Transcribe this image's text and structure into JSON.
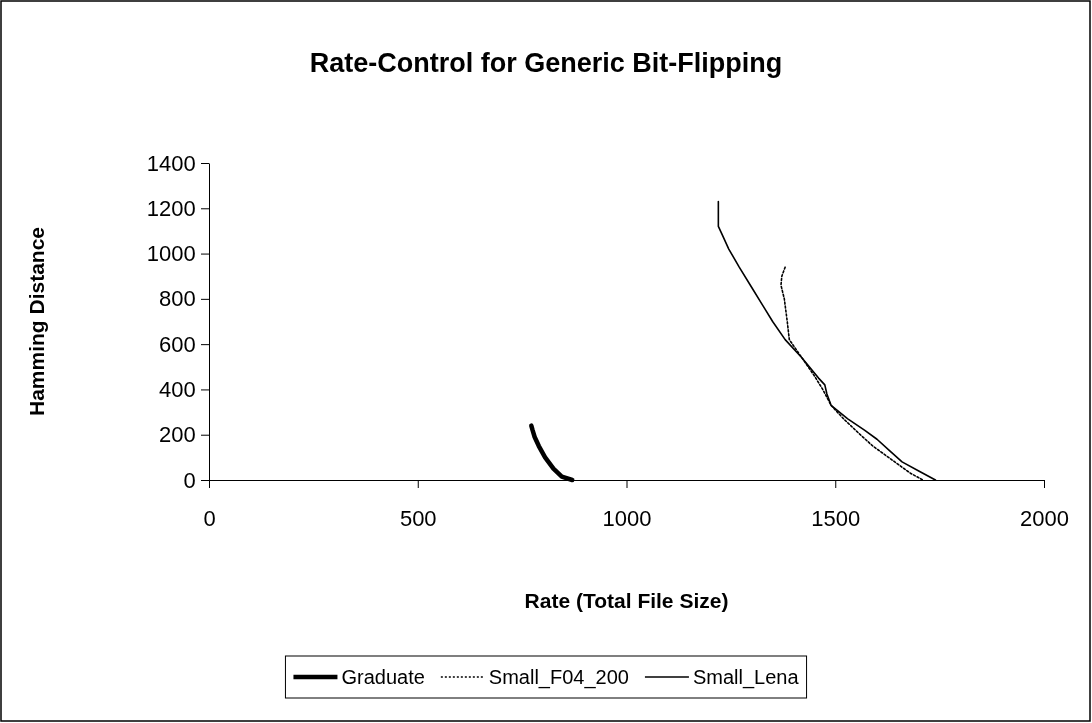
{
  "chart_data": {
    "type": "line",
    "title": "Rate-Control for Generic Bit-Flipping",
    "xlabel": "Rate (Total File Size)",
    "ylabel": "Hamming Distance",
    "xlim": [
      0,
      2000
    ],
    "xticks": [
      0,
      500,
      1000,
      1500,
      2000
    ],
    "ylim": [
      0,
      1400
    ],
    "yticks": [
      0,
      200,
      400,
      600,
      800,
      1000,
      1200,
      1400
    ],
    "grid": false,
    "legend": "bottom",
    "marker": "none",
    "series": [
      {
        "name": "Graduate",
        "color": "#000000",
        "line_style": "solid",
        "x": [
          772,
          775,
          780,
          790,
          805,
          825,
          845,
          870
        ],
        "values": [
          240,
          220,
          190,
          150,
          100,
          50,
          15,
          0
        ]
      },
      {
        "name": "Small_F04_200",
        "color": "#000000",
        "line_style": "dotted",
        "x": [
          1380,
          1372,
          1370,
          1378,
          1385,
          1390,
          1420,
          1450,
          1470,
          1490,
          1520,
          1560,
          1590,
          1620,
          1650,
          1680,
          1710
        ],
        "values": [
          940,
          900,
          860,
          800,
          700,
          620,
          540,
          460,
          400,
          330,
          270,
          200,
          150,
          110,
          70,
          30,
          0
        ]
      },
      {
        "name": "Small_Lena",
        "color": "#000000",
        "line_style": "solid",
        "x": [
          1220,
          1220,
          1230,
          1245,
          1270,
          1300,
          1330,
          1350,
          1380,
          1420,
          1460,
          1475,
          1480,
          1490,
          1530,
          1570,
          1600,
          1630,
          1660,
          1700,
          1740
        ],
        "values": [
          1230,
          1120,
          1080,
          1020,
          940,
          850,
          760,
          700,
          620,
          540,
          450,
          420,
          380,
          330,
          270,
          220,
          180,
          130,
          80,
          40,
          0
        ]
      }
    ]
  }
}
